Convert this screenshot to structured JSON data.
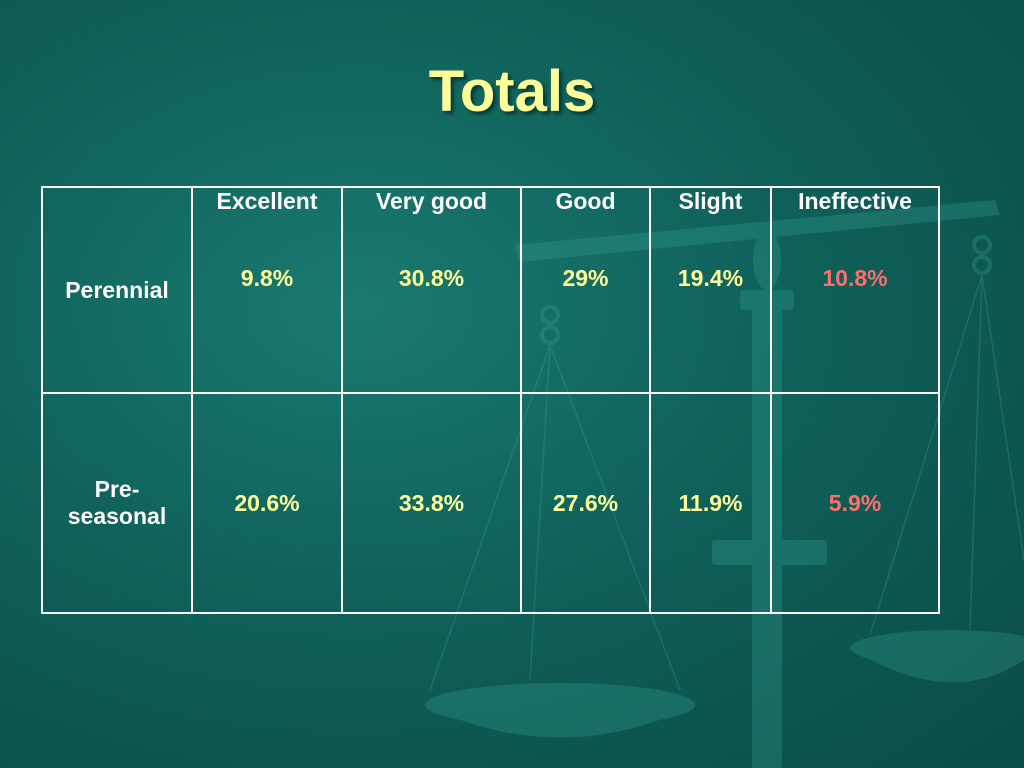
{
  "slide": {
    "title": "Totals"
  },
  "table": {
    "columns": [
      "Excellent",
      "Very good",
      "Good",
      "Slight",
      "Ineffective"
    ],
    "rows": [
      {
        "label": "Perennial",
        "values": [
          "9.8%",
          "30.8%",
          "29%",
          "19.4%",
          "10.8%"
        ]
      },
      {
        "label_line1": "Pre-",
        "label_line2": "seasonal",
        "values": [
          "20.6%",
          "33.8%",
          "27.6%",
          "11.9%",
          "5.9%"
        ]
      }
    ]
  },
  "colors": {
    "title": "#ffff99",
    "value": "#ffff99",
    "ineffective_value": "#ff6d6d",
    "text": "#ffffff",
    "background": "#0f615a"
  },
  "decorative_image": "balance-scale-icon"
}
